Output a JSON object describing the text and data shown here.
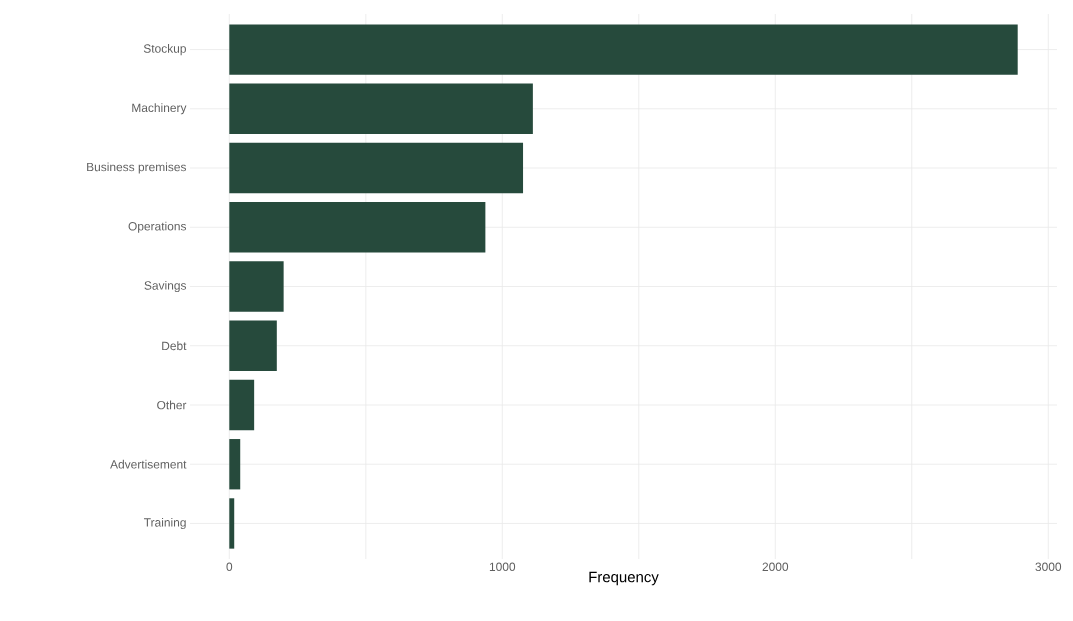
{
  "chart_data": {
    "type": "bar",
    "orientation": "horizontal",
    "xlabel": "Frequency",
    "categories": [
      "Stockup",
      "Machinery",
      "Business premises",
      "Operations",
      "Savings",
      "Debt",
      "Other",
      "Advertisement",
      "Training"
    ],
    "values": [
      2888,
      1112,
      1076,
      938,
      199,
      174,
      91,
      40,
      18
    ],
    "color": "#264a3c",
    "xlim": [
      -144,
      3032
    ],
    "xticks": [
      0,
      {
        "value": 500,
        "label": null
      },
      1000,
      {
        "value": 1500,
        "label": null
      },
      2000,
      {
        "value": 2500,
        "label": null
      },
      3000
    ],
    "grid": true
  }
}
